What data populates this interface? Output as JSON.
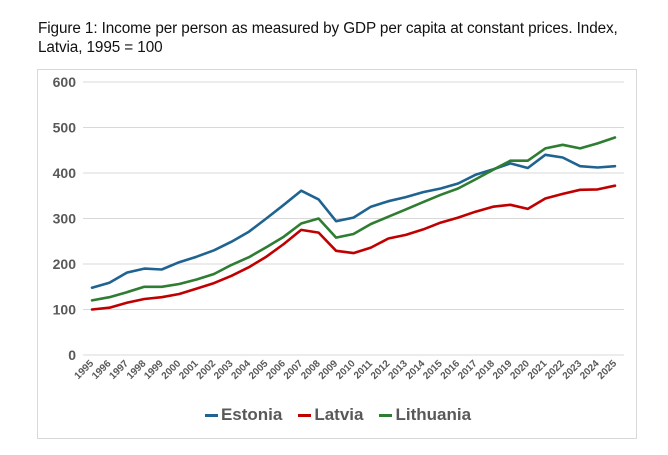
{
  "caption": {
    "line1": "Figure 1: Income per person as measured by GDP per capita at constant prices. Index,",
    "line2": "Latvia, 1995 = 100"
  },
  "chart_data": {
    "type": "line",
    "title": "Figure 1: Income per person as measured by GDP per capita at constant prices. Index, Latvia, 1995 = 100",
    "xlabel": "",
    "ylabel": "",
    "ylim": [
      0,
      600
    ],
    "yticks": [
      0,
      100,
      200,
      300,
      400,
      500,
      600
    ],
    "grid": true,
    "legend_position": "bottom",
    "x": [
      "1995",
      "1996",
      "1997",
      "1998",
      "1999",
      "2000",
      "2001",
      "2002",
      "2003",
      "2004",
      "2005",
      "2006",
      "2007",
      "2008",
      "2009",
      "2010",
      "2011",
      "2012",
      "2013",
      "2014",
      "2015",
      "2016",
      "2017",
      "2018",
      "2019",
      "2020",
      "2021",
      "2022",
      "2023",
      "2024",
      "2025"
    ],
    "series": [
      {
        "name": "Estonia",
        "color": "#1f6391",
        "values": [
          148,
          159,
          181,
          190,
          188,
          204,
          216,
          230,
          249,
          271,
          300,
          330,
          361,
          342,
          294,
          302,
          326,
          338,
          347,
          358,
          366,
          377,
          396,
          408,
          421,
          411,
          440,
          434,
          415,
          412,
          415
        ]
      },
      {
        "name": "Latvia",
        "color": "#c00000",
        "values": [
          100,
          104,
          115,
          123,
          127,
          134,
          146,
          158,
          174,
          193,
          216,
          244,
          275,
          269,
          229,
          224,
          236,
          256,
          264,
          276,
          291,
          302,
          315,
          326,
          330,
          321,
          344,
          354,
          363,
          364,
          372
        ]
      },
      {
        "name": "Lithuania",
        "color": "#2e7d32",
        "values": [
          120,
          127,
          138,
          150,
          150,
          156,
          166,
          178,
          198,
          215,
          237,
          260,
          289,
          300,
          258,
          266,
          288,
          304,
          320,
          336,
          352,
          366,
          386,
          407,
          427,
          427,
          454,
          462,
          454,
          465,
          478
        ]
      }
    ]
  }
}
